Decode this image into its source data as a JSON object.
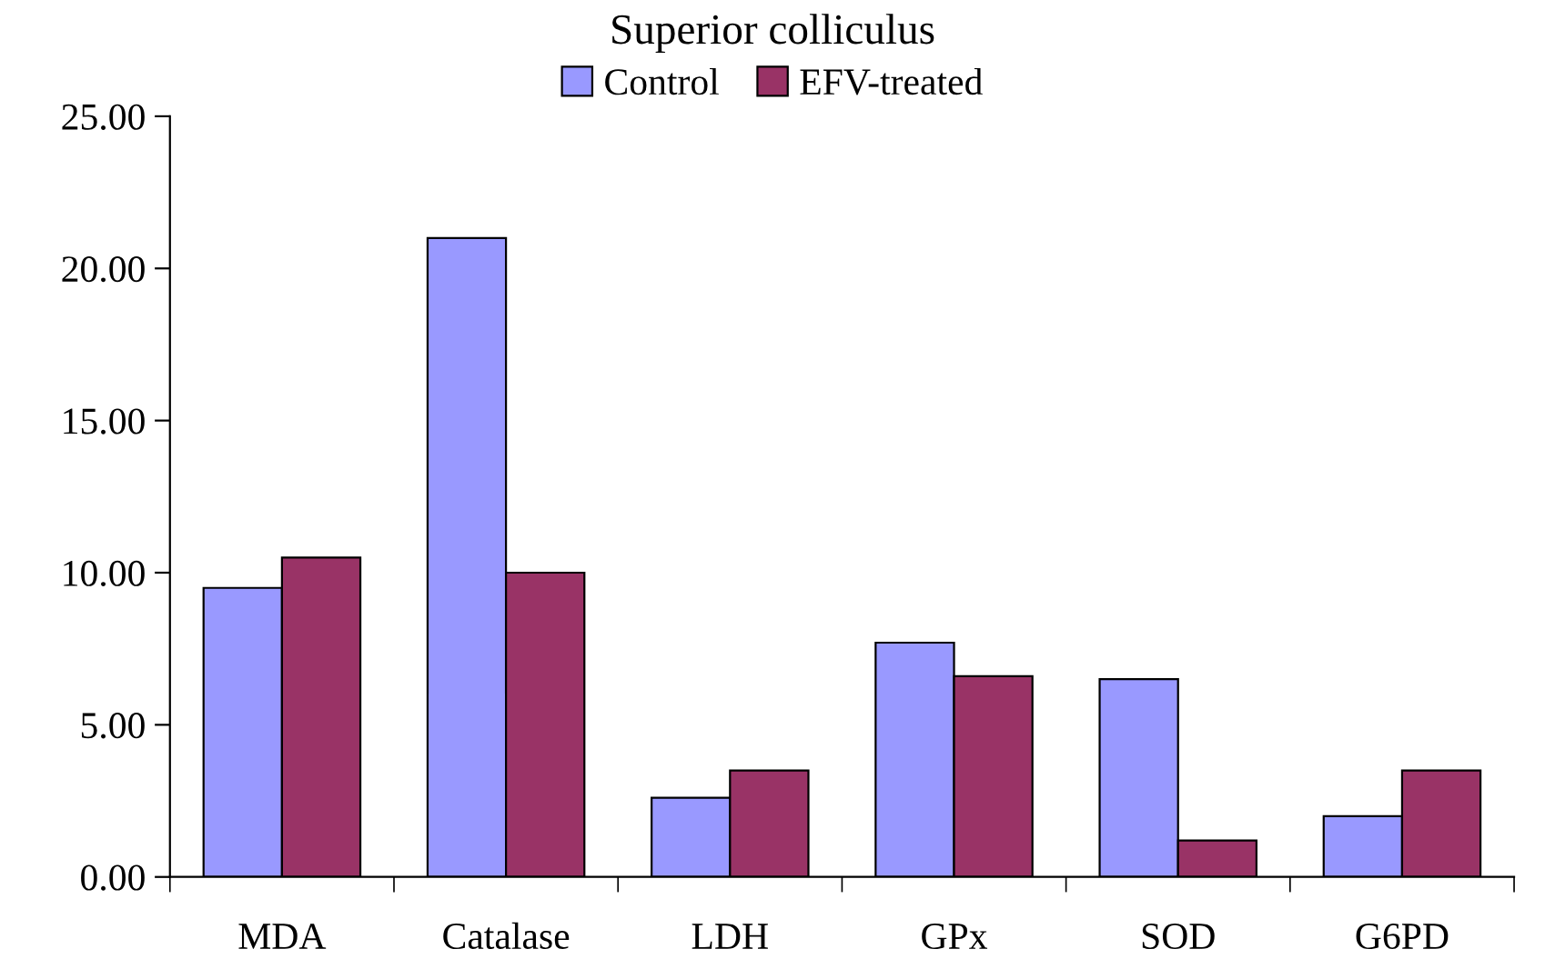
{
  "chart_data": {
    "type": "bar",
    "title": "Superior colliculus",
    "categories": [
      "MDA",
      "Catalase",
      "LDH",
      "GPx",
      "SOD",
      "G6PD"
    ],
    "series": [
      {
        "name": "Control",
        "color": "#9999ff",
        "values": [
          9.5,
          21.0,
          2.6,
          7.7,
          6.5,
          2.0
        ]
      },
      {
        "name": "EFV-treated",
        "color": "#993366",
        "values": [
          10.5,
          10.0,
          3.5,
          6.6,
          1.2,
          3.5
        ]
      }
    ],
    "ylim": [
      0,
      25
    ],
    "yticks": [
      {
        "value": 0,
        "label": "0.00"
      },
      {
        "value": 5,
        "label": "5.00"
      },
      {
        "value": 10,
        "label": "10.00"
      },
      {
        "value": 15,
        "label": "15.00"
      },
      {
        "value": 20,
        "label": "20.00"
      },
      {
        "value": 25,
        "label": "25.00"
      }
    ],
    "grid": false,
    "legend": "top"
  }
}
